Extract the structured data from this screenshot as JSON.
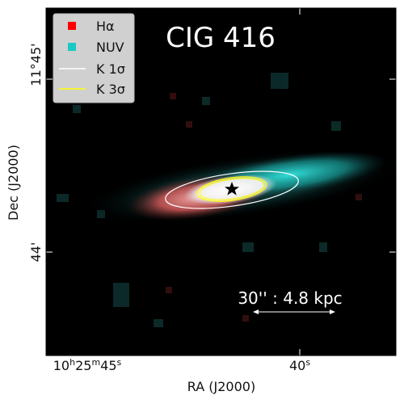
{
  "title": "CIG 416",
  "axes": {
    "x_label": "RA (J2000)",
    "y_label": "Dec (J2000)",
    "x_ticks": [
      {
        "hour": "10",
        "min": "25",
        "sec": "45"
      },
      {
        "hour": "",
        "min": "",
        "sec": "40"
      }
    ],
    "y_ticks": [
      "11°45'",
      "44'"
    ]
  },
  "legend": {
    "placement": "top-left",
    "items": [
      {
        "label": "Hα",
        "kind": "marker",
        "color": "#ff0000"
      },
      {
        "label": "NUV",
        "kind": "marker",
        "color": "#19c9c3"
      },
      {
        "label": "K 1σ",
        "kind": "line",
        "color": "#ffffff"
      },
      {
        "label": "K 3σ",
        "kind": "line",
        "color": "#ffff00"
      }
    ]
  },
  "scale_bar": {
    "label": "30'' : 4.8 kpc"
  },
  "colors": {
    "background": "#000000",
    "halpha": "#ff0000",
    "nuv": "#19c9c3",
    "contour_1sigma": "#ffffff",
    "contour_3sigma": "#ffff00",
    "marker": "#000000"
  },
  "icons": {
    "center_marker": "star-icon"
  }
}
